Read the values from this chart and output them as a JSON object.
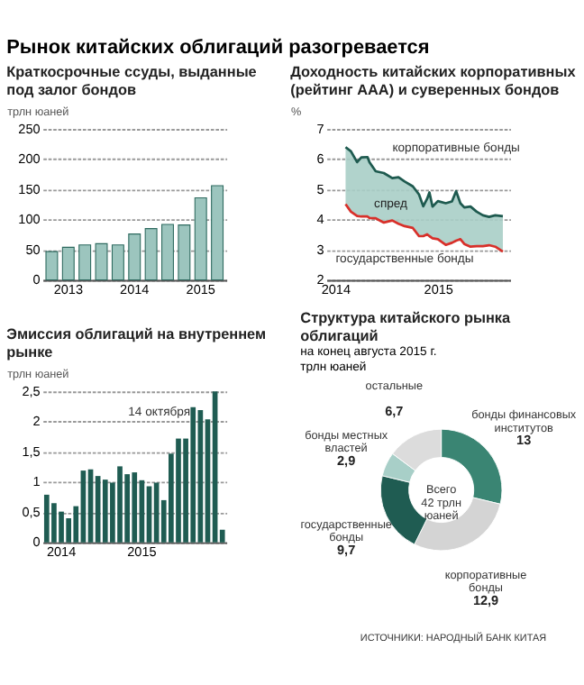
{
  "chart_data": [
    {
      "type": "bar",
      "title": "Рынок китайских облигаций разогревается",
      "subtitle": "Краткосрочные ссуды, выданные под залог бондов",
      "ylabel": "трлн юаней",
      "categories": [
        null,
        "2013",
        null,
        null,
        null,
        "2014",
        null,
        null,
        null,
        "2015",
        null
      ],
      "values": [
        47,
        54,
        58,
        60,
        58,
        76,
        85,
        92,
        91,
        136,
        156
      ],
      "color": "#9cc5be",
      "ylim": [
        0,
        250
      ],
      "yticks": [
        0,
        50,
        100,
        150,
        200,
        250
      ],
      "grid": "y"
    },
    {
      "type": "line",
      "title": "Доходность китайских корпоративных (рейтинг ААА) и суверенных бондов",
      "ylabel": "%",
      "x": [
        "2014-02-07",
        "2014-02-26",
        "2014-03-20",
        "2014-04-04",
        "2014-04-26",
        "2014-05-03",
        "2014-05-25",
        "2014-06-23",
        "2014-07-23",
        "2014-08-14",
        "2014-09-05",
        "2014-10-04",
        "2014-10-26",
        "2014-11-10",
        "2014-11-24",
        "2014-12-02",
        "2014-12-13",
        "2015-01-01",
        "2015-01-29",
        "2015-02-20",
        "2015-03-07",
        "2015-03-22",
        "2015-04-05",
        "2015-04-27",
        "2015-05-19",
        "2015-06-10",
        "2015-07-02",
        "2015-07-24",
        "2015-08-20"
      ],
      "series": [
        {
          "name": "корпоративные бонды",
          "color": "#1e5a4f",
          "values": [
            6.4,
            6.26,
            5.9,
            6.06,
            6.07,
            5.9,
            5.6,
            5.54,
            5.37,
            5.4,
            5.26,
            5.1,
            4.83,
            4.44,
            4.69,
            4.9,
            4.43,
            4.61,
            4.54,
            4.6,
            4.94,
            4.54,
            4.4,
            4.43,
            4.26,
            4.14,
            4.09,
            4.14,
            4.11
          ],
          "lower": [
            4.51,
            4.26,
            4.12,
            4.1,
            4.1,
            4.05,
            4.04,
            3.9,
            3.97,
            3.86,
            3.78,
            3.72,
            3.45,
            3.45,
            3.51,
            3.45,
            3.38,
            3.35,
            3.16,
            3.23,
            3.3,
            3.35,
            3.19,
            3.1,
            3.12,
            3.12,
            3.15,
            3.1,
            2.94
          ],
          "upper": [
            6.4,
            6.26,
            5.9,
            6.06,
            6.07,
            5.9,
            5.6,
            5.54,
            5.37,
            5.4,
            5.26,
            5.1,
            4.83,
            4.44,
            4.69,
            4.9,
            4.43,
            4.61,
            4.54,
            4.6,
            4.94,
            4.54,
            4.4,
            4.43,
            4.26,
            4.14,
            4.09,
            4.14,
            4.11
          ]
        },
        {
          "name": "государственные бонды",
          "color": "#d8302a",
          "values": [
            4.51,
            4.26,
            4.12,
            4.1,
            4.1,
            4.05,
            4.04,
            3.9,
            3.97,
            3.86,
            3.78,
            3.72,
            3.45,
            3.45,
            3.51,
            3.45,
            3.38,
            3.35,
            3.16,
            3.23,
            3.3,
            3.35,
            3.19,
            3.1,
            3.12,
            3.12,
            3.15,
            3.1,
            2.94
          ]
        }
      ],
      "annotations": [
        "спред"
      ],
      "xlim": [
        "2013-12-01",
        "2015-09-15"
      ],
      "xticks": [
        "2014",
        "2015"
      ],
      "ylim": [
        2,
        7
      ],
      "yticks": [
        2,
        3,
        4,
        5,
        6,
        7
      ],
      "grid": "y"
    },
    {
      "type": "bar",
      "title": "Эмиссия облигаций на внутреннем рынке",
      "ylabel": "трлн юаней",
      "categories": [
        null,
        null,
        "2014",
        null,
        null,
        null,
        null,
        null,
        null,
        null,
        null,
        null,
        null,
        "2015",
        null,
        null,
        null,
        null,
        null,
        null,
        null,
        null,
        null,
        null,
        null
      ],
      "values": [
        0.79,
        0.65,
        0.51,
        0.4,
        0.6,
        1.19,
        1.21,
        1.1,
        1.04,
        0.99,
        1.26,
        1.13,
        1.16,
        1.03,
        0.93,
        0.99,
        0.7,
        1.47,
        1.72,
        1.72,
        2.24,
        2.19,
        2.04,
        2.5,
        0.21
      ],
      "color": "#1f5c52",
      "ylim": [
        0,
        2.5
      ],
      "yticks": [
        0,
        {
          "value": 0.5,
          "label": "0,5"
        },
        1,
        {
          "value": 1.5,
          "label": "1,5"
        },
        2,
        {
          "value": 2.5,
          "label": "2,5"
        }
      ],
      "grid": "y",
      "annotations": [
        "14 октября"
      ]
    },
    {
      "type": "donut",
      "title": "Структура китайского рынка облигаций",
      "subtitle": "на конец августа 2015 г.",
      "ylabel": "трлн юаней",
      "categories": [
        "бонды финансовых институтов",
        "корпоративные бонды",
        "государственные бонды",
        "бонды местных властей",
        "остальные"
      ],
      "values": [
        13,
        12.9,
        9.7,
        2.9,
        6.7
      ],
      "value_labels": [
        "13",
        "12,9",
        "9,7",
        "2,9",
        "6,7"
      ],
      "colors": [
        "#3a8573",
        "#d4d4d4",
        "#1f5c52",
        "#a8cfc8",
        "#dcdcdc"
      ],
      "annotations": [
        "Всего 42 трлн юаней",
        "ИСТОЧНИКИ: НАРОДНЫЙ БАНК КИТАЯ"
      ]
    }
  ]
}
